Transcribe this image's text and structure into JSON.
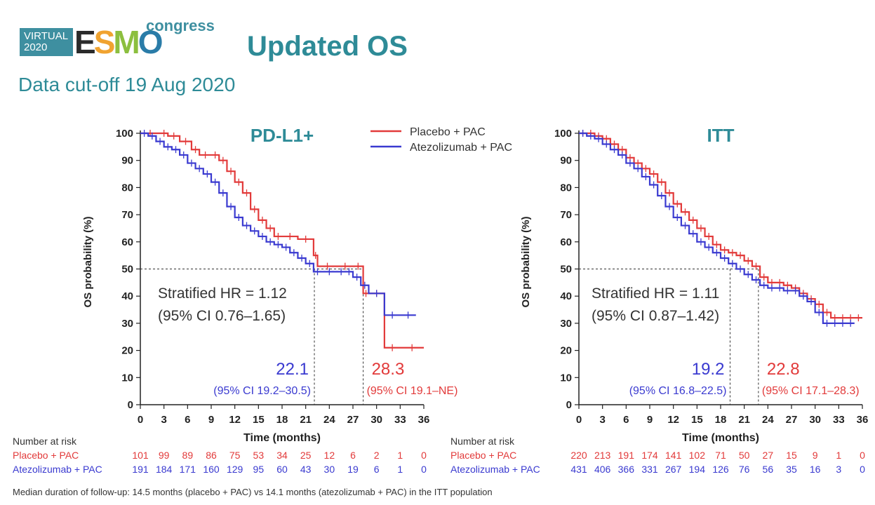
{
  "header": {
    "logo_virtual_line1": "VIRTUAL",
    "logo_virtual_line2": "2020",
    "logo_esmo": "ESMO",
    "logo_congress": "congress",
    "title": "Updated OS",
    "subtitle": "Data cut-off 19 Aug 2020"
  },
  "colors": {
    "placebo": "#e23a3a",
    "atezo": "#3a3ad0",
    "teal": "#2e8b97"
  },
  "footnote": "Median duration of follow-up: 14.5 months (placebo + PAC) vs 14.1 months (atezolizumab + PAC) in the ITT population",
  "chart_data": [
    {
      "type": "line",
      "title": "PD-L1+",
      "xlabel": "Time (months)",
      "ylabel": "OS probability (%)",
      "xlim": [
        0,
        36
      ],
      "ylim": [
        0,
        100
      ],
      "xticks": [
        0,
        3,
        6,
        9,
        12,
        15,
        18,
        21,
        24,
        27,
        30,
        33,
        36
      ],
      "yticks": [
        0,
        10,
        20,
        30,
        40,
        50,
        60,
        70,
        80,
        90,
        100
      ],
      "legend": [
        "Placebo + PAC",
        "Atezolizumab + PAC"
      ],
      "legend_position": "top-right",
      "hr_line1": "Stratified HR = 1.12",
      "hr_line2": "(95% CI 0.76–1.65)",
      "median_atezo": {
        "value": "22.1",
        "ci": "(95% CI 19.2–30.5)",
        "x": 22.1
      },
      "median_placebo": {
        "value": "28.3",
        "ci": "(95% CI 19.1–NE)",
        "x": 28.3
      },
      "series": [
        {
          "name": "Placebo + PAC",
          "x": [
            0,
            2.5,
            3.5,
            5,
            6.5,
            7.5,
            9,
            10,
            11,
            12,
            13,
            14,
            15,
            16,
            17,
            18,
            20,
            22,
            22.5,
            25,
            27,
            28.3,
            29,
            31,
            33,
            36
          ],
          "y": [
            100,
            100,
            99,
            97,
            94,
            92,
            92,
            90,
            86,
            82,
            78,
            72,
            68,
            65,
            62,
            62,
            61,
            55,
            51,
            51,
            51,
            41,
            41,
            21,
            21,
            21
          ]
        },
        {
          "name": "Atezolizumab + PAC",
          "x": [
            0,
            1,
            2,
            3,
            4,
            5,
            6,
            7,
            8,
            9,
            10,
            11,
            12,
            13,
            14,
            15,
            16,
            17,
            18,
            19,
            20,
            21,
            22,
            23,
            25,
            26,
            27,
            28,
            29,
            31,
            33,
            35
          ],
          "y": [
            100,
            99,
            97,
            95,
            94,
            92,
            89,
            87,
            85,
            82,
            78,
            73,
            69,
            66,
            64,
            62,
            60,
            59,
            58,
            56,
            54,
            52,
            49,
            49,
            49,
            49,
            47,
            44,
            41,
            33,
            33,
            33
          ]
        }
      ],
      "risk_table": {
        "header": "Number at risk",
        "rows": [
          {
            "label": "Placebo + PAC",
            "values": [
              "101",
              "99",
              "89",
              "86",
              "75",
              "53",
              "34",
              "25",
              "12",
              "6",
              "2",
              "1",
              "0"
            ]
          },
          {
            "label": "Atezolizumab + PAC",
            "values": [
              "191",
              "184",
              "171",
              "160",
              "129",
              "95",
              "60",
              "43",
              "30",
              "19",
              "6",
              "1",
              "0"
            ]
          }
        ]
      }
    },
    {
      "type": "line",
      "title": "ITT",
      "xlabel": "Time (months)",
      "ylabel": "OS probability (%)",
      "xlim": [
        0,
        36
      ],
      "ylim": [
        0,
        100
      ],
      "xticks": [
        0,
        3,
        6,
        9,
        12,
        15,
        18,
        21,
        24,
        27,
        30,
        33,
        36
      ],
      "yticks": [
        0,
        10,
        20,
        30,
        40,
        50,
        60,
        70,
        80,
        90,
        100
      ],
      "hr_line1": "Stratified HR = 1.11",
      "hr_line2": "(95% CI 0.87–1.42)",
      "median_atezo": {
        "value": "19.2",
        "ci": "(95% CI 16.8–22.5)",
        "x": 19.2
      },
      "median_placebo": {
        "value": "22.8",
        "ci": "(95% CI 17.1–28.3)",
        "x": 22.8
      },
      "series": [
        {
          "name": "Placebo + PAC",
          "x": [
            0,
            1,
            2,
            3,
            4,
            5,
            6,
            7,
            8,
            9,
            10,
            11,
            12,
            13,
            14,
            15,
            16,
            17,
            18,
            19,
            20,
            21,
            22,
            23,
            24,
            25,
            26,
            27,
            28,
            29,
            30,
            31,
            32,
            33,
            34,
            35,
            36
          ],
          "y": [
            100,
            100,
            99,
            98,
            96,
            94,
            91,
            89,
            87,
            85,
            82,
            78,
            74,
            71,
            68,
            65,
            62,
            59,
            57,
            56,
            55,
            53,
            51,
            47,
            45,
            45,
            44,
            43,
            41,
            39,
            37,
            34,
            32,
            32,
            32,
            32,
            32
          ]
        },
        {
          "name": "Atezolizumab + PAC",
          "x": [
            0,
            1,
            2,
            3,
            4,
            5,
            6,
            7,
            8,
            9,
            10,
            11,
            12,
            13,
            14,
            15,
            16,
            17,
            18,
            19,
            20,
            21,
            22,
            23,
            24,
            25,
            26,
            27,
            28,
            29,
            30,
            31,
            32,
            33,
            34,
            35
          ],
          "y": [
            100,
            99,
            98,
            96,
            94,
            92,
            89,
            87,
            84,
            81,
            77,
            73,
            69,
            66,
            63,
            60,
            58,
            56,
            54,
            52,
            50,
            48,
            46,
            44,
            43,
            43,
            42,
            42,
            40,
            38,
            34,
            30,
            30,
            30,
            30,
            30
          ]
        }
      ],
      "risk_table": {
        "header": "Number at risk",
        "rows": [
          {
            "label": "Placebo + PAC",
            "values": [
              "220",
              "213",
              "191",
              "174",
              "141",
              "102",
              "71",
              "50",
              "27",
              "15",
              "9",
              "1",
              "0"
            ]
          },
          {
            "label": "Atezolizumab + PAC",
            "values": [
              "431",
              "406",
              "366",
              "331",
              "267",
              "194",
              "126",
              "76",
              "56",
              "35",
              "16",
              "3",
              "0"
            ]
          }
        ]
      }
    }
  ]
}
